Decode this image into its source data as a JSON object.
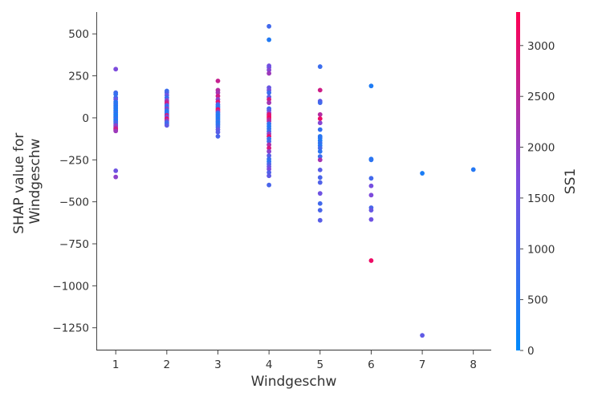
{
  "chart_data": {
    "type": "scatter",
    "title": "",
    "xlabel": "Windgeschw",
    "ylabel_lines": [
      "SHAP value for",
      "Windgeschw"
    ],
    "xlim": [
      0.62,
      8.35
    ],
    "ylim": [
      -1385,
      630
    ],
    "xticks": [
      1,
      2,
      3,
      4,
      5,
      6,
      7,
      8
    ],
    "xtick_labels": [
      "1",
      "2",
      "3",
      "4",
      "5",
      "6",
      "7",
      "8"
    ],
    "yticks": [
      500,
      250,
      0,
      -250,
      -500,
      -750,
      -1000,
      -1250
    ],
    "ytick_labels": [
      "500",
      "250",
      "0",
      "−250",
      "−500",
      "−750",
      "−1000",
      "−1250"
    ],
    "grid": false,
    "colorbar": {
      "label": "SS1",
      "min": 0,
      "max": 3330,
      "ticks": [
        0,
        500,
        1000,
        1500,
        2000,
        2500,
        3000
      ],
      "tick_labels": [
        "0",
        "500",
        "1000",
        "1500",
        "2000",
        "2500",
        "3000"
      ],
      "colors": [
        "#008afb",
        "#7a4ddf",
        "#ff0052"
      ]
    },
    "points": [
      {
        "x": 1,
        "y": 290,
        "c": 1700
      },
      {
        "x": 1,
        "y": 150,
        "c": 900
      },
      {
        "x": 1,
        "y": 140,
        "c": 700
      },
      {
        "x": 1,
        "y": 120,
        "c": 800
      },
      {
        "x": 1,
        "y": 110,
        "c": 1500
      },
      {
        "x": 1,
        "y": 95,
        "c": 600
      },
      {
        "x": 1,
        "y": 85,
        "c": 500
      },
      {
        "x": 1,
        "y": 75,
        "c": 700
      },
      {
        "x": 1,
        "y": 65,
        "c": 400
      },
      {
        "x": 1,
        "y": 55,
        "c": 600
      },
      {
        "x": 1,
        "y": 45,
        "c": 450
      },
      {
        "x": 1,
        "y": 38,
        "c": 350
      },
      {
        "x": 1,
        "y": 30,
        "c": 700
      },
      {
        "x": 1,
        "y": 22,
        "c": 500
      },
      {
        "x": 1,
        "y": 15,
        "c": 300
      },
      {
        "x": 1,
        "y": 8,
        "c": 600
      },
      {
        "x": 1,
        "y": 2,
        "c": 250
      },
      {
        "x": 1,
        "y": -5,
        "c": 900
      },
      {
        "x": 1,
        "y": -12,
        "c": 500
      },
      {
        "x": 1,
        "y": -20,
        "c": 400
      },
      {
        "x": 1,
        "y": -28,
        "c": 1200
      },
      {
        "x": 1,
        "y": -36,
        "c": 800
      },
      {
        "x": 1,
        "y": -45,
        "c": 2000
      },
      {
        "x": 1,
        "y": -52,
        "c": 1800
      },
      {
        "x": 1,
        "y": -60,
        "c": 2300
      },
      {
        "x": 1,
        "y": -66,
        "c": 2600
      },
      {
        "x": 1,
        "y": -72,
        "c": 2800
      },
      {
        "x": 1,
        "y": -78,
        "c": 2100
      },
      {
        "x": 1,
        "y": -315,
        "c": 1500
      },
      {
        "x": 1,
        "y": -352,
        "c": 1900
      },
      {
        "x": 2,
        "y": 160,
        "c": 800
      },
      {
        "x": 2,
        "y": 150,
        "c": 1000
      },
      {
        "x": 2,
        "y": 135,
        "c": 1500
      },
      {
        "x": 2,
        "y": 120,
        "c": 700
      },
      {
        "x": 2,
        "y": 105,
        "c": 1800
      },
      {
        "x": 2,
        "y": 95,
        "c": 2400
      },
      {
        "x": 2,
        "y": 85,
        "c": 2800
      },
      {
        "x": 2,
        "y": 75,
        "c": 1200
      },
      {
        "x": 2,
        "y": 65,
        "c": 600
      },
      {
        "x": 2,
        "y": 55,
        "c": 2000
      },
      {
        "x": 2,
        "y": 45,
        "c": 900
      },
      {
        "x": 2,
        "y": 35,
        "c": 500
      },
      {
        "x": 2,
        "y": 25,
        "c": 700
      },
      {
        "x": 2,
        "y": 15,
        "c": 2600
      },
      {
        "x": 2,
        "y": 5,
        "c": 1400
      },
      {
        "x": 2,
        "y": -5,
        "c": 3000
      },
      {
        "x": 2,
        "y": -15,
        "c": 2200
      },
      {
        "x": 2,
        "y": -25,
        "c": 1100
      },
      {
        "x": 2,
        "y": -35,
        "c": 800
      },
      {
        "x": 2,
        "y": -45,
        "c": 1300
      },
      {
        "x": 3,
        "y": 220,
        "c": 2600
      },
      {
        "x": 3,
        "y": 165,
        "c": 2400
      },
      {
        "x": 3,
        "y": 150,
        "c": 2200
      },
      {
        "x": 3,
        "y": 130,
        "c": 2700
      },
      {
        "x": 3,
        "y": 110,
        "c": 1900
      },
      {
        "x": 3,
        "y": 95,
        "c": 2900
      },
      {
        "x": 3,
        "y": 80,
        "c": 1100
      },
      {
        "x": 3,
        "y": 70,
        "c": 600
      },
      {
        "x": 3,
        "y": 60,
        "c": 700
      },
      {
        "x": 3,
        "y": 50,
        "c": 3100
      },
      {
        "x": 3,
        "y": 40,
        "c": 2500
      },
      {
        "x": 3,
        "y": 30,
        "c": 800
      },
      {
        "x": 3,
        "y": 20,
        "c": 500
      },
      {
        "x": 3,
        "y": 10,
        "c": 400
      },
      {
        "x": 3,
        "y": 0,
        "c": 600
      },
      {
        "x": 3,
        "y": -10,
        "c": 350
      },
      {
        "x": 3,
        "y": -20,
        "c": 800
      },
      {
        "x": 3,
        "y": -30,
        "c": 500
      },
      {
        "x": 3,
        "y": -42,
        "c": 700
      },
      {
        "x": 3,
        "y": -55,
        "c": 900
      },
      {
        "x": 3,
        "y": -70,
        "c": 1400
      },
      {
        "x": 3,
        "y": -85,
        "c": 1200
      },
      {
        "x": 3,
        "y": -110,
        "c": 1000
      },
      {
        "x": 4,
        "y": 545,
        "c": 900
      },
      {
        "x": 4,
        "y": 465,
        "c": 450
      },
      {
        "x": 4,
        "y": 310,
        "c": 1600
      },
      {
        "x": 4,
        "y": 300,
        "c": 1500
      },
      {
        "x": 4,
        "y": 285,
        "c": 1800
      },
      {
        "x": 4,
        "y": 265,
        "c": 2100
      },
      {
        "x": 4,
        "y": 180,
        "c": 1400
      },
      {
        "x": 4,
        "y": 165,
        "c": 1600
      },
      {
        "x": 4,
        "y": 150,
        "c": 800
      },
      {
        "x": 4,
        "y": 125,
        "c": 1300
      },
      {
        "x": 4,
        "y": 110,
        "c": 2700
      },
      {
        "x": 4,
        "y": 90,
        "c": 2200
      },
      {
        "x": 4,
        "y": 55,
        "c": 800
      },
      {
        "x": 4,
        "y": 45,
        "c": 1200
      },
      {
        "x": 4,
        "y": 30,
        "c": 1800
      },
      {
        "x": 4,
        "y": 20,
        "c": 3000
      },
      {
        "x": 4,
        "y": 10,
        "c": 2900
      },
      {
        "x": 4,
        "y": 0,
        "c": 3200
      },
      {
        "x": 4,
        "y": -10,
        "c": 2600
      },
      {
        "x": 4,
        "y": -20,
        "c": 2400
      },
      {
        "x": 4,
        "y": -35,
        "c": 700
      },
      {
        "x": 4,
        "y": -50,
        "c": 500
      },
      {
        "x": 4,
        "y": -65,
        "c": 600
      },
      {
        "x": 4,
        "y": -80,
        "c": 800
      },
      {
        "x": 4,
        "y": -95,
        "c": 2000
      },
      {
        "x": 4,
        "y": -110,
        "c": 3000
      },
      {
        "x": 4,
        "y": -125,
        "c": 700
      },
      {
        "x": 4,
        "y": -140,
        "c": 900
      },
      {
        "x": 4,
        "y": -160,
        "c": 2300
      },
      {
        "x": 4,
        "y": -180,
        "c": 2800
      },
      {
        "x": 4,
        "y": -200,
        "c": 1900
      },
      {
        "x": 4,
        "y": -225,
        "c": 1200
      },
      {
        "x": 4,
        "y": -245,
        "c": 800
      },
      {
        "x": 4,
        "y": -260,
        "c": 600
      },
      {
        "x": 4,
        "y": -275,
        "c": 1000
      },
      {
        "x": 4,
        "y": -290,
        "c": 1400
      },
      {
        "x": 4,
        "y": -305,
        "c": 1700
      },
      {
        "x": 4,
        "y": -325,
        "c": 1100
      },
      {
        "x": 4,
        "y": -345,
        "c": 1300
      },
      {
        "x": 4,
        "y": -400,
        "c": 1000
      },
      {
        "x": 5,
        "y": 305,
        "c": 800
      },
      {
        "x": 5,
        "y": 165,
        "c": 2700
      },
      {
        "x": 5,
        "y": 100,
        "c": 1300
      },
      {
        "x": 5,
        "y": 90,
        "c": 900
      },
      {
        "x": 5,
        "y": 20,
        "c": 2400
      },
      {
        "x": 5,
        "y": -5,
        "c": 3100
      },
      {
        "x": 5,
        "y": -30,
        "c": 1800
      },
      {
        "x": 5,
        "y": -70,
        "c": 700
      },
      {
        "x": 5,
        "y": -110,
        "c": 500
      },
      {
        "x": 5,
        "y": -120,
        "c": 600
      },
      {
        "x": 5,
        "y": -135,
        "c": 400
      },
      {
        "x": 5,
        "y": -150,
        "c": 700
      },
      {
        "x": 5,
        "y": -165,
        "c": 500
      },
      {
        "x": 5,
        "y": -180,
        "c": 900
      },
      {
        "x": 5,
        "y": -200,
        "c": 600
      },
      {
        "x": 5,
        "y": -230,
        "c": 800
      },
      {
        "x": 5,
        "y": -250,
        "c": 2200
      },
      {
        "x": 5,
        "y": -310,
        "c": 1200
      },
      {
        "x": 5,
        "y": -355,
        "c": 1000
      },
      {
        "x": 5,
        "y": -385,
        "c": 1100
      },
      {
        "x": 5,
        "y": -450,
        "c": 1500
      },
      {
        "x": 5,
        "y": -510,
        "c": 900
      },
      {
        "x": 5,
        "y": -550,
        "c": 1000
      },
      {
        "x": 5,
        "y": -610,
        "c": 1200
      },
      {
        "x": 6,
        "y": 190,
        "c": 400
      },
      {
        "x": 6,
        "y": -245,
        "c": 500
      },
      {
        "x": 6,
        "y": -250,
        "c": 600
      },
      {
        "x": 6,
        "y": -360,
        "c": 900
      },
      {
        "x": 6,
        "y": -405,
        "c": 1600
      },
      {
        "x": 6,
        "y": -460,
        "c": 1700
      },
      {
        "x": 6,
        "y": -535,
        "c": 1000
      },
      {
        "x": 6,
        "y": -550,
        "c": 1400
      },
      {
        "x": 6,
        "y": -605,
        "c": 1500
      },
      {
        "x": 6,
        "y": -850,
        "c": 3100
      },
      {
        "x": 7,
        "y": -330,
        "c": 350
      },
      {
        "x": 7,
        "y": -1295,
        "c": 1300
      },
      {
        "x": 8,
        "y": -308,
        "c": 500
      }
    ]
  }
}
